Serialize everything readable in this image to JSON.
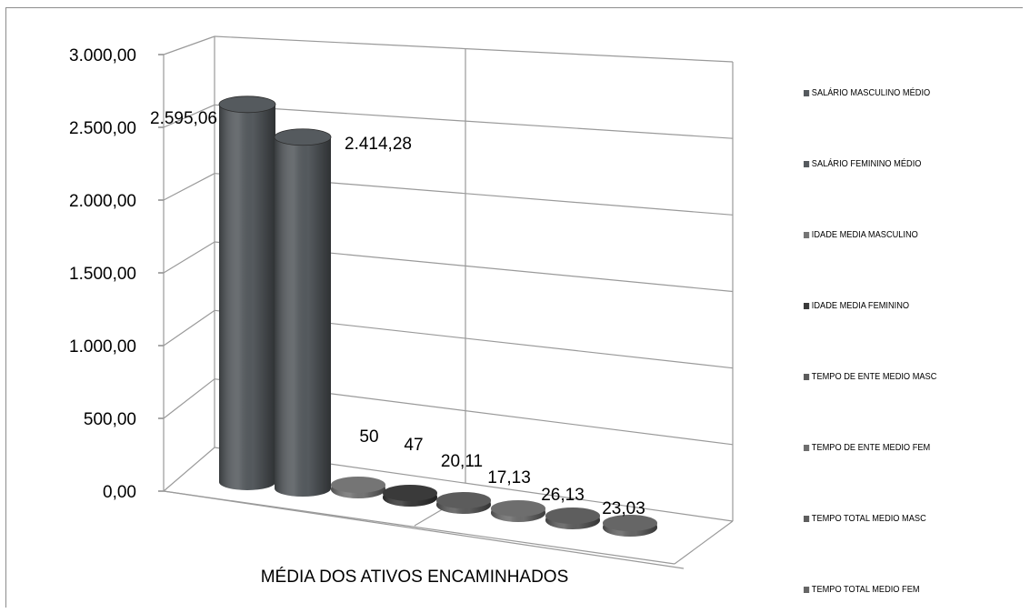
{
  "chart_data": {
    "type": "bar",
    "style": "3d-cylinder",
    "title": "",
    "xlabel": "MÉDIA DOS ATIVOS ENCAMINHADOS",
    "ylabel": "",
    "ylim": [
      0,
      3000
    ],
    "yticks": [
      "0,00",
      "500,00",
      "1.000,00",
      "1.500,00",
      "2.000,00",
      "2.500,00",
      "3.000,00"
    ],
    "grid": true,
    "legend_position": "right",
    "series": [
      {
        "name": "SALÁRIO MASCULINO MÉDIO",
        "value": 2595.06,
        "label": "2.595,06",
        "color": "#555a5e"
      },
      {
        "name": "SALÁRIO FEMININO MÉDIO",
        "value": 2414.28,
        "label": "2.414,28",
        "color": "#555a5e"
      },
      {
        "name": "IDADE MEDIA MASCULINO",
        "value": 50,
        "label": "50",
        "color": "#757575"
      },
      {
        "name": "IDADE MEDIA FEMININO",
        "value": 47,
        "label": "47",
        "color": "#3a3a3a"
      },
      {
        "name": "TEMPO DE ENTE MEDIO MASC",
        "value": 20.11,
        "label": "20,11",
        "color": "#5c5c5c"
      },
      {
        "name": "TEMPO DE ENTE MEDIO FEM",
        "value": 17.13,
        "label": "17,13",
        "color": "#6e6e6e"
      },
      {
        "name": "TEMPO TOTAL MEDIO MASC",
        "value": 26.13,
        "label": "26,13",
        "color": "#5e5e5e"
      },
      {
        "name": "TEMPO TOTAL MEDIO FEM",
        "value": 23.03,
        "label": "23,03",
        "color": "#666666"
      }
    ]
  }
}
